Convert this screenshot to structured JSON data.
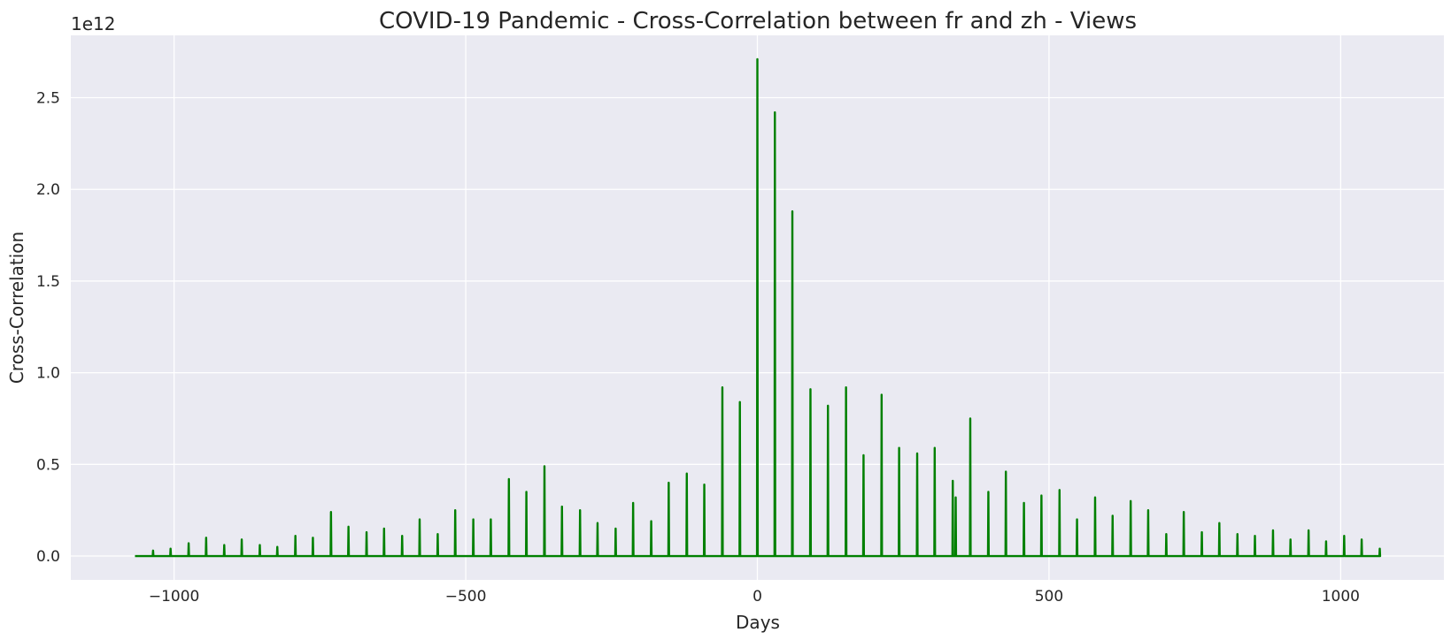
{
  "chart_data": {
    "type": "line",
    "title": "COVID-19 Pandemic - Cross-Correlation between fr and zh - Views",
    "xlabel": "Days",
    "ylabel": "Cross-Correlation",
    "y_offset_label": "1e12",
    "y_scale": 1000000000000,
    "xlim": [
      -1177,
      1177
    ],
    "ylim": [
      -0.13,
      2.84
    ],
    "x_ticks": [
      -1000,
      -500,
      0,
      500,
      1000
    ],
    "x_tick_labels": [
      "−1000",
      "−500",
      "0",
      "500",
      "1000"
    ],
    "y_ticks": [
      0.0,
      0.5,
      1.0,
      1.5,
      2.0,
      2.5
    ],
    "y_tick_labels": [
      "0.0",
      "0.5",
      "1.0",
      "1.5",
      "2.0",
      "2.5"
    ],
    "grid": true,
    "line_color": "#008000",
    "background_color": "#eaeaf2",
    "x_domain": [
      -1067,
      1067
    ],
    "series": [
      {
        "values_in_units_of_1e12": true,
        "peaks": [
          {
            "x": -1036,
            "y": 0.03
          },
          {
            "x": -1006,
            "y": 0.04
          },
          {
            "x": -975,
            "y": 0.07
          },
          {
            "x": -945,
            "y": 0.1
          },
          {
            "x": -914,
            "y": 0.06
          },
          {
            "x": -884,
            "y": 0.09
          },
          {
            "x": -853,
            "y": 0.06
          },
          {
            "x": -823,
            "y": 0.05
          },
          {
            "x": -792,
            "y": 0.11
          },
          {
            "x": -762,
            "y": 0.1
          },
          {
            "x": -731,
            "y": 0.24
          },
          {
            "x": -701,
            "y": 0.16
          },
          {
            "x": -670,
            "y": 0.13
          },
          {
            "x": -640,
            "y": 0.15
          },
          {
            "x": -609,
            "y": 0.11
          },
          {
            "x": -579,
            "y": 0.2
          },
          {
            "x": -548,
            "y": 0.12
          },
          {
            "x": -518,
            "y": 0.25
          },
          {
            "x": -487,
            "y": 0.2
          },
          {
            "x": -457,
            "y": 0.2
          },
          {
            "x": -426,
            "y": 0.42
          },
          {
            "x": -396,
            "y": 0.35
          },
          {
            "x": -365,
            "y": 0.49
          },
          {
            "x": -335,
            "y": 0.27
          },
          {
            "x": -304,
            "y": 0.25
          },
          {
            "x": -274,
            "y": 0.18
          },
          {
            "x": -243,
            "y": 0.15
          },
          {
            "x": -213,
            "y": 0.29
          },
          {
            "x": -182,
            "y": 0.19
          },
          {
            "x": -152,
            "y": 0.4
          },
          {
            "x": -121,
            "y": 0.45
          },
          {
            "x": -91,
            "y": 0.39
          },
          {
            "x": -60,
            "y": 0.92
          },
          {
            "x": -30,
            "y": 0.84
          },
          {
            "x": 0,
            "y": 2.71
          },
          {
            "x": 30,
            "y": 2.42
          },
          {
            "x": 60,
            "y": 1.88
          },
          {
            "x": 91,
            "y": 0.91
          },
          {
            "x": 121,
            "y": 0.82
          },
          {
            "x": 152,
            "y": 0.92
          },
          {
            "x": 182,
            "y": 0.55
          },
          {
            "x": 213,
            "y": 0.88
          },
          {
            "x": 243,
            "y": 0.59
          },
          {
            "x": 274,
            "y": 0.56
          },
          {
            "x": 304,
            "y": 0.59
          },
          {
            "x": 335,
            "y": 0.41
          },
          {
            "x": 340,
            "y": 0.32
          },
          {
            "x": 365,
            "y": 0.75
          },
          {
            "x": 396,
            "y": 0.35
          },
          {
            "x": 426,
            "y": 0.46
          },
          {
            "x": 457,
            "y": 0.29
          },
          {
            "x": 487,
            "y": 0.33
          },
          {
            "x": 518,
            "y": 0.36
          },
          {
            "x": 548,
            "y": 0.2
          },
          {
            "x": 579,
            "y": 0.32
          },
          {
            "x": 609,
            "y": 0.22
          },
          {
            "x": 640,
            "y": 0.3
          },
          {
            "x": 670,
            "y": 0.25
          },
          {
            "x": 701,
            "y": 0.12
          },
          {
            "x": 731,
            "y": 0.24
          },
          {
            "x": 762,
            "y": 0.13
          },
          {
            "x": 792,
            "y": 0.18
          },
          {
            "x": 823,
            "y": 0.12
          },
          {
            "x": 853,
            "y": 0.11
          },
          {
            "x": 884,
            "y": 0.14
          },
          {
            "x": 914,
            "y": 0.09
          },
          {
            "x": 945,
            "y": 0.14
          },
          {
            "x": 975,
            "y": 0.08
          },
          {
            "x": 1006,
            "y": 0.11
          },
          {
            "x": 1036,
            "y": 0.09
          },
          {
            "x": 1067,
            "y": 0.04
          }
        ]
      }
    ]
  }
}
